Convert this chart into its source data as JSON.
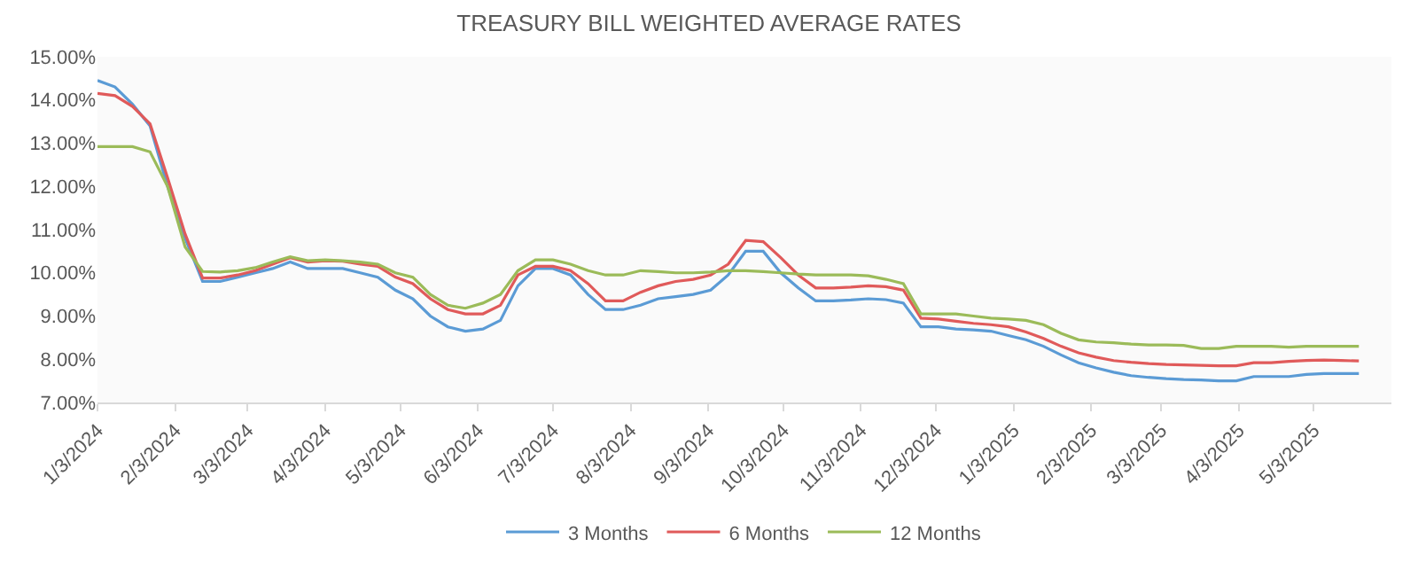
{
  "chart_data": {
    "type": "line",
    "title": "TREASURY BILL WEIGHTED AVERAGE RATES",
    "x": [
      "2024-01-03",
      "2024-01-10",
      "2024-01-17",
      "2024-01-24",
      "2024-01-31",
      "2024-02-07",
      "2024-02-14",
      "2024-02-21",
      "2024-02-28",
      "2024-03-06",
      "2024-03-13",
      "2024-03-20",
      "2024-03-27",
      "2024-04-03",
      "2024-04-10",
      "2024-04-17",
      "2024-04-24",
      "2024-05-01",
      "2024-05-08",
      "2024-05-15",
      "2024-05-22",
      "2024-05-29",
      "2024-06-05",
      "2024-06-12",
      "2024-06-19",
      "2024-06-26",
      "2024-07-03",
      "2024-07-10",
      "2024-07-17",
      "2024-07-24",
      "2024-07-31",
      "2024-08-07",
      "2024-08-14",
      "2024-08-21",
      "2024-08-28",
      "2024-09-04",
      "2024-09-11",
      "2024-09-18",
      "2024-09-25",
      "2024-10-02",
      "2024-10-09",
      "2024-10-16",
      "2024-10-23",
      "2024-10-30",
      "2024-11-06",
      "2024-11-13",
      "2024-11-20",
      "2024-11-27",
      "2024-12-04",
      "2024-12-11",
      "2024-12-18",
      "2024-12-25",
      "2025-01-01",
      "2025-01-08",
      "2025-01-15",
      "2025-01-22",
      "2025-01-29",
      "2025-02-05",
      "2025-02-12",
      "2025-02-19",
      "2025-02-26",
      "2025-03-05",
      "2025-03-12",
      "2025-03-19",
      "2025-03-26",
      "2025-04-02",
      "2025-04-09",
      "2025-04-16",
      "2025-04-23",
      "2025-04-30",
      "2025-05-07",
      "2025-05-14",
      "2025-05-21"
    ],
    "series": [
      {
        "name": "3 Months",
        "color": "#5b9bd5",
        "values": [
          14.45,
          14.3,
          13.9,
          13.4,
          12.0,
          10.8,
          9.8,
          9.8,
          9.9,
          10.0,
          10.1,
          10.25,
          10.1,
          10.1,
          10.1,
          10.0,
          9.9,
          9.6,
          9.4,
          9.0,
          8.75,
          8.65,
          8.7,
          8.9,
          9.7,
          10.1,
          10.1,
          9.95,
          9.5,
          9.15,
          9.15,
          9.25,
          9.4,
          9.45,
          9.5,
          9.6,
          9.95,
          10.5,
          10.5,
          10.0,
          9.65,
          9.35,
          9.35,
          9.37,
          9.4,
          9.38,
          9.3,
          8.75,
          8.75,
          8.7,
          8.68,
          8.65,
          8.55,
          8.45,
          8.3,
          8.1,
          7.92,
          7.8,
          7.7,
          7.62,
          7.58,
          7.55,
          7.53,
          7.52,
          7.5,
          7.5,
          7.6,
          7.6,
          7.6,
          7.65,
          7.67,
          7.67,
          7.67
        ]
      },
      {
        "name": "6 Months",
        "color": "#e05a5a",
        "values": [
          14.15,
          14.1,
          13.85,
          13.45,
          12.2,
          10.9,
          9.88,
          9.88,
          9.95,
          10.05,
          10.2,
          10.35,
          10.25,
          10.28,
          10.27,
          10.2,
          10.15,
          9.9,
          9.75,
          9.4,
          9.15,
          9.05,
          9.05,
          9.25,
          9.95,
          10.15,
          10.15,
          10.05,
          9.75,
          9.35,
          9.35,
          9.55,
          9.7,
          9.8,
          9.85,
          9.95,
          10.2,
          10.75,
          10.72,
          10.35,
          9.95,
          9.65,
          9.65,
          9.67,
          9.7,
          9.68,
          9.6,
          8.95,
          8.93,
          8.88,
          8.83,
          8.8,
          8.75,
          8.63,
          8.48,
          8.3,
          8.15,
          8.05,
          7.97,
          7.93,
          7.9,
          7.88,
          7.87,
          7.86,
          7.85,
          7.85,
          7.92,
          7.92,
          7.95,
          7.97,
          7.98,
          7.97,
          7.96
        ]
      },
      {
        "name": "12 Months",
        "color": "#9bbb59",
        "values": [
          12.92,
          12.92,
          12.92,
          12.8,
          12.0,
          10.6,
          10.03,
          10.02,
          10.05,
          10.12,
          10.25,
          10.37,
          10.28,
          10.3,
          10.28,
          10.25,
          10.2,
          10.0,
          9.9,
          9.5,
          9.25,
          9.18,
          9.3,
          9.5,
          10.05,
          10.3,
          10.3,
          10.2,
          10.05,
          9.95,
          9.95,
          10.05,
          10.03,
          10.0,
          10.0,
          10.02,
          10.05,
          10.05,
          10.03,
          10.0,
          9.97,
          9.95,
          9.95,
          9.95,
          9.93,
          9.85,
          9.75,
          9.05,
          9.05,
          9.05,
          9.0,
          8.95,
          8.93,
          8.9,
          8.8,
          8.6,
          8.45,
          8.4,
          8.38,
          8.35,
          8.33,
          8.33,
          8.32,
          8.25,
          8.25,
          8.3,
          8.3,
          8.3,
          8.28,
          8.3,
          8.3,
          8.3,
          8.3
        ]
      }
    ],
    "xlim": [
      "2024-01-03",
      "2025-06-03"
    ],
    "xticks": [
      {
        "value": "2024-01-03",
        "label": "1/3/2024"
      },
      {
        "value": "2024-02-03",
        "label": "2/3/2024"
      },
      {
        "value": "2024-03-03",
        "label": "3/3/2024"
      },
      {
        "value": "2024-04-03",
        "label": "4/3/2024"
      },
      {
        "value": "2024-05-03",
        "label": "5/3/2024"
      },
      {
        "value": "2024-06-03",
        "label": "6/3/2024"
      },
      {
        "value": "2024-07-03",
        "label": "7/3/2024"
      },
      {
        "value": "2024-08-03",
        "label": "8/3/2024"
      },
      {
        "value": "2024-09-03",
        "label": "9/3/2024"
      },
      {
        "value": "2024-10-03",
        "label": "10/3/2024"
      },
      {
        "value": "2024-11-03",
        "label": "11/3/2024"
      },
      {
        "value": "2024-12-03",
        "label": "12/3/2024"
      },
      {
        "value": "2025-01-03",
        "label": "1/3/2025"
      },
      {
        "value": "2025-02-03",
        "label": "2/3/2025"
      },
      {
        "value": "2025-03-03",
        "label": "3/3/2025"
      },
      {
        "value": "2025-04-03",
        "label": "4/3/2025"
      },
      {
        "value": "2025-05-03",
        "label": "5/3/2025"
      }
    ],
    "ylim": [
      7,
      15
    ],
    "yticks": [
      {
        "value": 7,
        "label": "7.00%"
      },
      {
        "value": 8,
        "label": "8.00%"
      },
      {
        "value": 9,
        "label": "9.00%"
      },
      {
        "value": 10,
        "label": "10.00%"
      },
      {
        "value": 11,
        "label": "11.00%"
      },
      {
        "value": 12,
        "label": "12.00%"
      },
      {
        "value": 13,
        "label": "13.00%"
      },
      {
        "value": 14,
        "label": "14.00%"
      },
      {
        "value": 15,
        "label": "15.00%"
      }
    ],
    "legend": "bottom",
    "grid": false,
    "marker": "none",
    "line_style": "solid"
  }
}
